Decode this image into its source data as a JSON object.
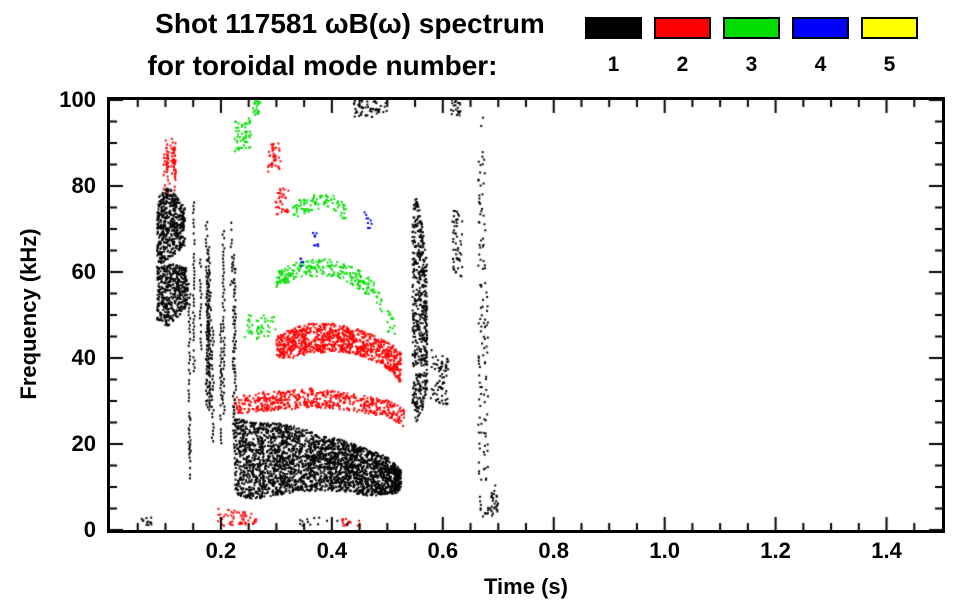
{
  "title": {
    "line1": "Shot 117581 ωB(ω) spectrum",
    "line2": "for toroidal mode number:"
  },
  "legend": {
    "modes": [
      {
        "label": "1",
        "color": "#000000"
      },
      {
        "label": "2",
        "color": "#ff0000"
      },
      {
        "label": "3",
        "color": "#00dd00"
      },
      {
        "label": "4",
        "color": "#0000ff"
      },
      {
        "label": "5",
        "color": "#ffff00"
      }
    ]
  },
  "chart_data": {
    "type": "scatter",
    "title": "Shot 117581 ωB(ω) spectrum for toroidal mode number: 1 2 3 4 5",
    "xlabel": "Time (s)",
    "ylabel": "Frequency (kHz)",
    "xlim": [
      0,
      1.5
    ],
    "ylim": [
      0,
      100
    ],
    "x_ticks": [
      0.2,
      0.4,
      0.6,
      0.8,
      1.0,
      1.2,
      1.4
    ],
    "x_tick_labels": [
      "0.2",
      "0.4",
      "0.6",
      "0.8",
      "1.0",
      "1.2",
      "1.4"
    ],
    "y_ticks": [
      0,
      20,
      40,
      60,
      80,
      100
    ],
    "y_tick_labels": [
      "0",
      "20",
      "40",
      "60",
      "80",
      "100"
    ],
    "x_minor_step": 0.05,
    "y_minor_step": 5,
    "grid": false,
    "legend_position": "top-right",
    "series": [
      {
        "name": "n=1",
        "color": "#000000",
        "clusters": [
          {
            "kind": "band",
            "n": 520,
            "s": 2,
            "path": [
              [
                0.085,
                61,
                77
              ],
              [
                0.105,
                63,
                80
              ],
              [
                0.135,
                66,
                75
              ]
            ]
          },
          {
            "kind": "band",
            "n": 460,
            "s": 2,
            "path": [
              [
                0.085,
                49,
                61
              ],
              [
                0.105,
                47,
                62
              ],
              [
                0.14,
                52,
                61
              ]
            ]
          },
          {
            "kind": "vlines",
            "lines": 16,
            "t": [
              0.142,
              0.227
            ],
            "f": [
              9,
              78
            ],
            "fspan": [
              12,
              52
            ]
          },
          {
            "kind": "band",
            "n": 2800,
            "s": 2,
            "path": [
              [
                0.225,
                8,
                26
              ],
              [
                0.26,
                7,
                25
              ],
              [
                0.3,
                8,
                25
              ],
              [
                0.34,
                9,
                24
              ],
              [
                0.38,
                9,
                22
              ],
              [
                0.42,
                9,
                21
              ],
              [
                0.46,
                8,
                19
              ],
              [
                0.5,
                8,
                17
              ],
              [
                0.525,
                9,
                14
              ]
            ]
          },
          {
            "kind": "band",
            "n": 520,
            "s": 2,
            "path": [
              [
                0.545,
                28,
                74
              ],
              [
                0.552,
                25,
                78
              ],
              [
                0.562,
                27,
                72
              ],
              [
                0.572,
                33,
                62
              ]
            ]
          },
          {
            "kind": "band",
            "n": 70,
            "s": 2,
            "path": [
              [
                0.578,
                30,
                42
              ],
              [
                0.61,
                29,
                40
              ]
            ]
          },
          {
            "kind": "band",
            "n": 130,
            "s": 2,
            "path": [
              [
                0.664,
                5,
                92
              ],
              [
                0.672,
                2,
                100
              ],
              [
                0.682,
                4,
                55
              ]
            ]
          },
          {
            "kind": "band",
            "n": 28,
            "s": 2,
            "path": [
              [
                0.685,
                3,
                12
              ],
              [
                0.7,
                4,
                10
              ]
            ]
          },
          {
            "kind": "band",
            "n": 55,
            "s": 2,
            "path": [
              [
                0.44,
                96,
                100
              ],
              [
                0.5,
                96,
                100
              ]
            ]
          },
          {
            "kind": "band",
            "n": 22,
            "s": 2,
            "path": [
              [
                0.615,
                96,
                100
              ],
              [
                0.632,
                96,
                100
              ]
            ]
          },
          {
            "kind": "band",
            "n": 50,
            "s": 2,
            "path": [
              [
                0.617,
                60,
                76
              ],
              [
                0.635,
                58,
                72
              ]
            ]
          },
          {
            "kind": "band",
            "n": 12,
            "s": 2,
            "path": [
              [
                0.055,
                1,
                3
              ],
              [
                0.075,
                1,
                3
              ]
            ]
          },
          {
            "kind": "band",
            "n": 16,
            "s": 2,
            "path": [
              [
                0.34,
                1,
                3
              ],
              [
                0.43,
                1,
                3
              ]
            ]
          }
        ]
      },
      {
        "name": "n=2",
        "color": "#ff0000",
        "clusters": [
          {
            "kind": "vlines",
            "lines": 7,
            "t": [
              0.095,
              0.132
            ],
            "f": [
              78,
              91
            ],
            "fspan": [
              5,
              12
            ]
          },
          {
            "kind": "band",
            "n": 560,
            "s": 2,
            "path": [
              [
                0.225,
                27,
                31
              ],
              [
                0.27,
                27.5,
                32
              ],
              [
                0.32,
                28,
                32.5
              ],
              [
                0.37,
                28.5,
                33
              ],
              [
                0.42,
                28,
                32
              ],
              [
                0.47,
                27,
                31
              ],
              [
                0.505,
                25.5,
                30
              ],
              [
                0.53,
                24,
                28
              ]
            ]
          },
          {
            "kind": "band",
            "n": 950,
            "s": 2,
            "path": [
              [
                0.3,
                40,
                45
              ],
              [
                0.33,
                40,
                47
              ],
              [
                0.36,
                41,
                48
              ],
              [
                0.4,
                41.5,
                48
              ],
              [
                0.44,
                41,
                47
              ],
              [
                0.48,
                39,
                45
              ],
              [
                0.51,
                36.5,
                43
              ],
              [
                0.525,
                34,
                41
              ]
            ]
          },
          {
            "kind": "band",
            "n": 42,
            "s": 2,
            "path": [
              [
                0.285,
                83,
                90
              ],
              [
                0.308,
                84,
                90
              ]
            ]
          },
          {
            "kind": "band",
            "n": 36,
            "s": 2,
            "path": [
              [
                0.298,
                73,
                80
              ],
              [
                0.322,
                74,
                79
              ]
            ]
          },
          {
            "kind": "band",
            "n": 55,
            "s": 2,
            "path": [
              [
                0.19,
                1,
                5
              ],
              [
                0.265,
                1,
                4
              ]
            ]
          },
          {
            "kind": "band",
            "n": 14,
            "s": 2,
            "path": [
              [
                0.415,
                1,
                3
              ],
              [
                0.455,
                1,
                3
              ]
            ]
          },
          {
            "kind": "band",
            "n": 25,
            "s": 2,
            "path": [
              [
                0.1,
                84,
                91
              ],
              [
                0.118,
                85,
                91
              ]
            ]
          }
        ]
      },
      {
        "name": "n=3",
        "color": "#00dd00",
        "clusters": [
          {
            "kind": "band",
            "n": 55,
            "s": 2,
            "path": [
              [
                0.225,
                88,
                95
              ],
              [
                0.255,
                89,
                96
              ]
            ]
          },
          {
            "kind": "band",
            "n": 22,
            "s": 2,
            "path": [
              [
                0.257,
                96,
                100
              ],
              [
                0.272,
                97,
                100
              ]
            ]
          },
          {
            "kind": "band",
            "n": 240,
            "s": 2,
            "path": [
              [
                0.3,
                56.5,
                60
              ],
              [
                0.33,
                58,
                62
              ],
              [
                0.36,
                59,
                63
              ],
              [
                0.4,
                59,
                63
              ],
              [
                0.43,
                57.5,
                61.5
              ],
              [
                0.455,
                55.5,
                60
              ],
              [
                0.475,
                53,
                58
              ],
              [
                0.49,
                50.5,
                55
              ]
            ]
          },
          {
            "kind": "band",
            "n": 95,
            "s": 2,
            "path": [
              [
                0.33,
                72.5,
                76
              ],
              [
                0.36,
                74,
                78
              ],
              [
                0.4,
                74,
                78
              ],
              [
                0.425,
                72,
                76
              ]
            ]
          },
          {
            "kind": "band",
            "n": 48,
            "s": 2,
            "path": [
              [
                0.243,
                44,
                50
              ],
              [
                0.3,
                45,
                50
              ]
            ]
          },
          {
            "kind": "band",
            "n": 15,
            "s": 2,
            "path": [
              [
                0.5,
                46,
                52
              ],
              [
                0.515,
                45,
                50
              ]
            ]
          }
        ]
      },
      {
        "name": "n=4",
        "color": "#0000ff",
        "clusters": [
          {
            "kind": "band",
            "n": 9,
            "s": 2,
            "path": [
              [
                0.365,
                66,
                70
              ],
              [
                0.378,
                66,
                69
              ]
            ]
          },
          {
            "kind": "band",
            "n": 9,
            "s": 2,
            "path": [
              [
                0.458,
                70,
                74
              ],
              [
                0.472,
                70,
                73
              ]
            ]
          },
          {
            "kind": "band",
            "n": 5,
            "s": 2,
            "path": [
              [
                0.34,
                61,
                64
              ],
              [
                0.35,
                61,
                63
              ]
            ]
          }
        ]
      },
      {
        "name": "n=5",
        "color": "#ffff00",
        "clusters": []
      }
    ]
  }
}
